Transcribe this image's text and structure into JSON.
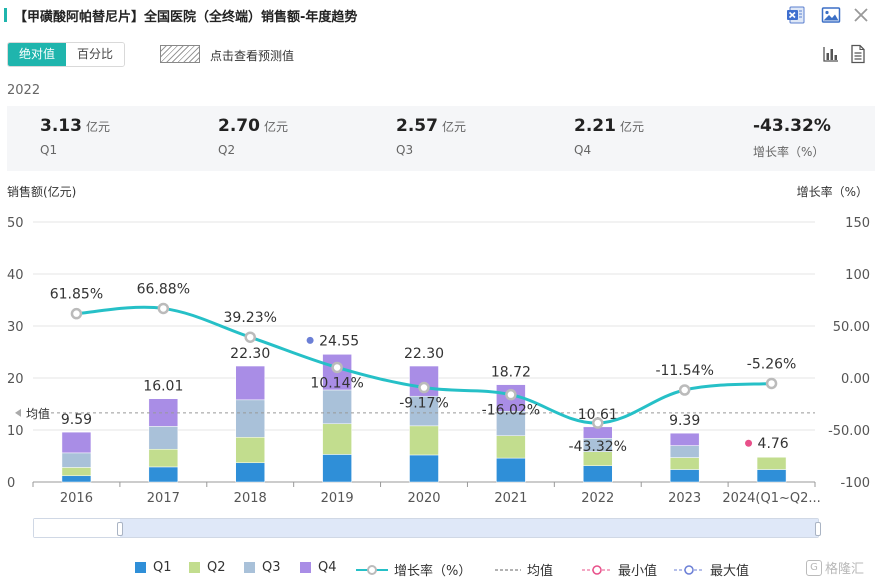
{
  "header": {
    "title": "【甲磺酸阿帕替尼片】全国医院（全终端）销售额-年度趋势"
  },
  "toolbar": {
    "toggle": [
      {
        "label": "绝对值",
        "active": true
      },
      {
        "label": "百分比",
        "active": false
      }
    ],
    "forecast_label": "点击查看预测值"
  },
  "summary": {
    "year": "2022",
    "items": [
      {
        "value": "3.13",
        "unit": "亿元",
        "label": "Q1"
      },
      {
        "value": "2.70",
        "unit": "亿元",
        "label": "Q2"
      },
      {
        "value": "2.57",
        "unit": "亿元",
        "label": "Q3"
      },
      {
        "value": "2.21",
        "unit": "亿元",
        "label": "Q4"
      },
      {
        "value": "-43.32%",
        "unit": "",
        "label": "增长率（%）"
      }
    ]
  },
  "chart_data": {
    "type": "bar",
    "stacked": true,
    "ylabel": "销售额(亿元)",
    "y2label": "增长率（%）",
    "ylim": [
      0,
      50
    ],
    "y2lim": [
      -100,
      150
    ],
    "yticks": [
      "0",
      "10",
      "20",
      "30",
      "40",
      "50"
    ],
    "y2ticks": [
      "-100",
      "-50.00",
      "0.00",
      "50.00",
      "100",
      "150"
    ],
    "categories": [
      "2016",
      "2017",
      "2018",
      "2019",
      "2020",
      "2021",
      "2022",
      "2023",
      "2024(Q1~Q2..."
    ],
    "series": [
      {
        "name": "Q1",
        "color": "#2f8fd8",
        "values": [
          1.2,
          2.9,
          3.7,
          5.3,
          5.2,
          4.6,
          3.13,
          2.4,
          2.4
        ]
      },
      {
        "name": "Q2",
        "color": "#c2dd8e",
        "values": [
          1.6,
          3.4,
          4.9,
          5.9,
          5.6,
          4.3,
          2.7,
          2.3,
          2.36
        ]
      },
      {
        "name": "Q3",
        "color": "#a9c1d9",
        "values": [
          2.8,
          4.4,
          7.2,
          6.5,
          5.7,
          4.7,
          2.57,
          2.3,
          0
        ]
      },
      {
        "name": "Q4",
        "color": "#a98de6",
        "values": [
          3.99,
          5.31,
          6.5,
          6.85,
          5.8,
          5.12,
          2.21,
          2.39,
          0
        ]
      }
    ],
    "totals": [
      9.59,
      16.01,
      22.3,
      24.55,
      22.3,
      18.72,
      10.61,
      9.39,
      4.76
    ],
    "growth": {
      "name": "增长率（%）",
      "color": "#26c0c7",
      "values": [
        61.85,
        66.88,
        39.23,
        10.14,
        -9.17,
        -16.02,
        -43.32,
        -11.54,
        -5.26
      ],
      "labels": [
        "61.85%",
        "66.88%",
        "39.23%",
        "10.14%",
        "-9.17%",
        "-16.02%",
        "-43.32%",
        "-11.54%",
        "-5.26%"
      ]
    },
    "average": {
      "name": "均值",
      "label": "均值",
      "value": 13.3
    },
    "min": {
      "name": "最小值",
      "index": 8,
      "color": "#e8508a"
    },
    "max": {
      "name": "最大值",
      "index": 3,
      "color": "#6b7fd6"
    }
  },
  "legend": {
    "items": [
      "Q1",
      "Q2",
      "Q3",
      "Q4",
      "增长率（%）",
      "均值",
      "最小值",
      "最大值"
    ]
  },
  "watermark": "格隆汇"
}
